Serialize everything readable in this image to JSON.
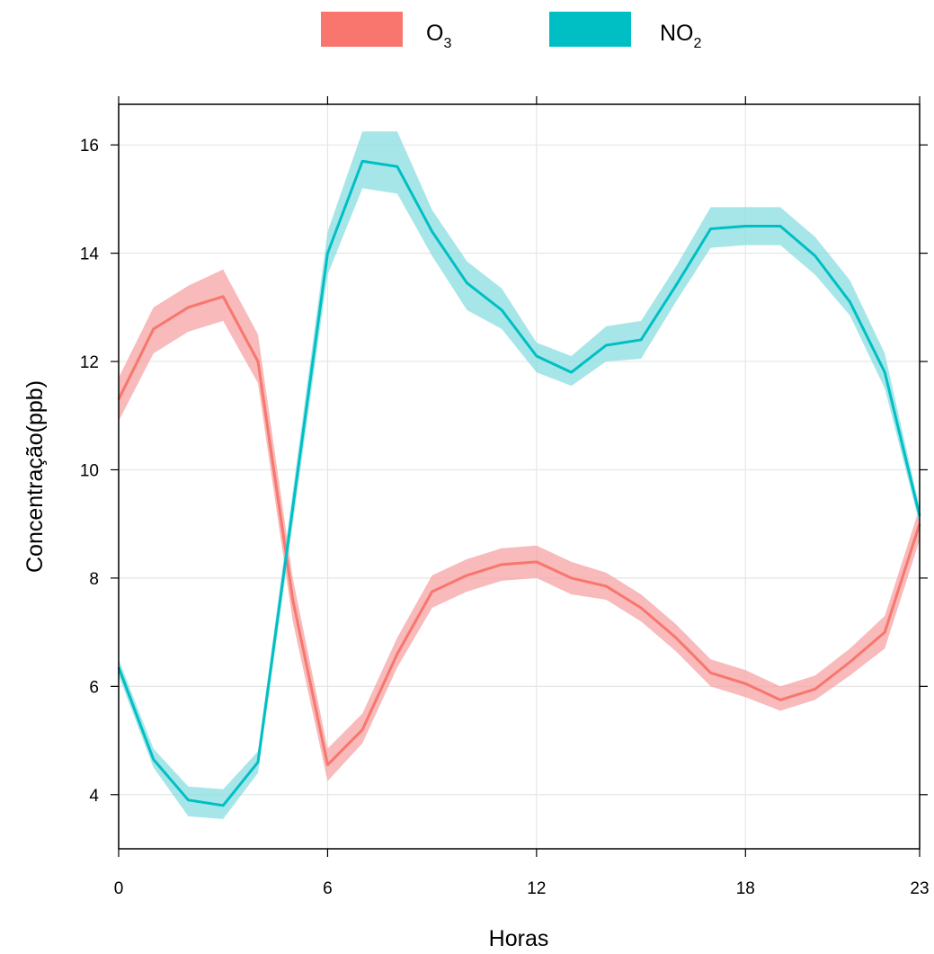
{
  "chart_data": {
    "type": "line",
    "xlabel": "Horas",
    "ylabel": "Concentração(ppb)",
    "xlim": [
      0,
      23
    ],
    "ylim": [
      3,
      16.75
    ],
    "x_ticks": [
      0,
      6,
      12,
      18,
      23
    ],
    "y_ticks": [
      4,
      6,
      8,
      10,
      12,
      14,
      16
    ],
    "grid": true,
    "legend_position": "top",
    "x": [
      0,
      1,
      2,
      3,
      4,
      5,
      6,
      7,
      8,
      9,
      10,
      11,
      12,
      13,
      14,
      15,
      16,
      17,
      18,
      19,
      20,
      21,
      22,
      23
    ],
    "series": [
      {
        "name": "O3",
        "label_base": "O",
        "label_sub": "3",
        "color": "#F8766D",
        "band_color": "#F5A3A3",
        "values": [
          11.3,
          12.6,
          13.0,
          13.2,
          12.0,
          7.6,
          4.55,
          5.2,
          6.6,
          7.75,
          8.05,
          8.25,
          8.3,
          8.0,
          7.85,
          7.45,
          6.9,
          6.25,
          6.05,
          5.75,
          5.95,
          6.45,
          7.0,
          9.0
        ],
        "lower": [
          10.9,
          12.15,
          12.55,
          12.75,
          11.6,
          7.2,
          4.25,
          4.95,
          6.35,
          7.45,
          7.75,
          7.95,
          8.0,
          7.7,
          7.6,
          7.2,
          6.65,
          6.0,
          5.8,
          5.55,
          5.75,
          6.2,
          6.7,
          8.7
        ],
        "upper": [
          11.7,
          13.0,
          13.4,
          13.7,
          12.5,
          8.0,
          4.85,
          5.5,
          6.9,
          8.05,
          8.35,
          8.55,
          8.6,
          8.3,
          8.1,
          7.7,
          7.15,
          6.5,
          6.3,
          6.0,
          6.2,
          6.7,
          7.3,
          9.3
        ]
      },
      {
        "name": "NO2",
        "label_base": "NO",
        "label_sub": "2",
        "color": "#00BFC4",
        "band_color": "#8ADDE0",
        "values": [
          6.35,
          4.65,
          3.9,
          3.8,
          4.6,
          9.3,
          14.0,
          15.7,
          15.6,
          14.4,
          13.45,
          12.95,
          12.1,
          11.8,
          12.3,
          12.4,
          13.4,
          14.45,
          14.5,
          14.5,
          13.95,
          13.1,
          11.8,
          9.15
        ],
        "lower": [
          6.2,
          4.5,
          3.6,
          3.55,
          4.4,
          9.0,
          13.6,
          15.2,
          15.1,
          13.95,
          12.95,
          12.6,
          11.8,
          11.55,
          12.0,
          12.05,
          13.1,
          14.1,
          14.15,
          14.15,
          13.6,
          12.85,
          11.5,
          9.0
        ],
        "upper": [
          6.5,
          4.85,
          4.15,
          4.1,
          4.8,
          9.6,
          14.4,
          16.25,
          16.25,
          14.8,
          13.85,
          13.35,
          12.35,
          12.1,
          12.65,
          12.75,
          13.75,
          14.85,
          14.85,
          14.85,
          14.3,
          13.5,
          12.15,
          9.3
        ]
      }
    ]
  }
}
